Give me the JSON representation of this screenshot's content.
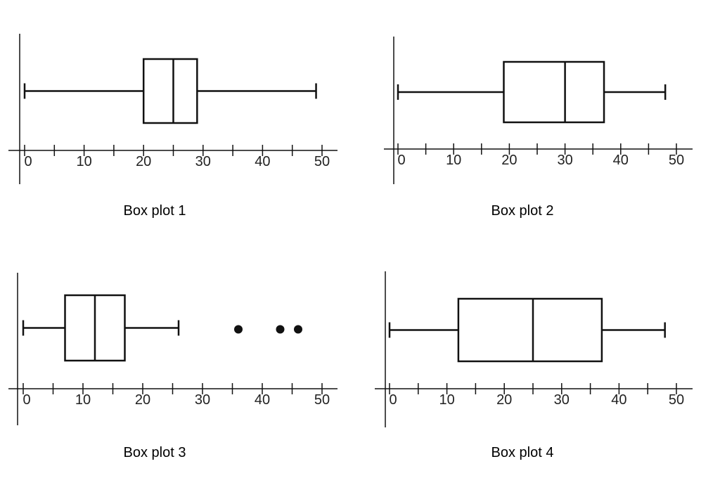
{
  "chart_data": [
    {
      "type": "box",
      "caption": "Box plot 1",
      "xlim": [
        0,
        50
      ],
      "ticks": [
        0,
        10,
        20,
        30,
        40,
        50
      ],
      "minor_ticks": [
        5,
        15,
        25,
        35,
        45
      ],
      "min": 0,
      "q1": 20,
      "median": 25,
      "q3": 29,
      "max": 49,
      "outliers": []
    },
    {
      "type": "box",
      "caption": "Box plot 2",
      "xlim": [
        0,
        50
      ],
      "ticks": [
        0,
        10,
        20,
        30,
        40,
        50
      ],
      "minor_ticks": [
        5,
        15,
        25,
        35,
        45
      ],
      "min": 0,
      "q1": 19,
      "median": 30,
      "q3": 37,
      "max": 48,
      "outliers": []
    },
    {
      "type": "box",
      "caption": "Box plot 3",
      "xlim": [
        0,
        50
      ],
      "ticks": [
        0,
        10,
        20,
        30,
        40,
        50
      ],
      "minor_ticks": [
        5,
        15,
        25,
        35,
        45
      ],
      "min": 0,
      "q1": 7,
      "median": 12,
      "q3": 17,
      "max": 26,
      "outliers": [
        36,
        43,
        46
      ]
    },
    {
      "type": "box",
      "caption": "Box plot 4",
      "xlim": [
        0,
        50
      ],
      "ticks": [
        0,
        10,
        20,
        30,
        40,
        50
      ],
      "minor_ticks": [
        5,
        15,
        25,
        35,
        45
      ],
      "min": 0,
      "q1": 12,
      "median": 25,
      "q3": 37,
      "max": 48,
      "outliers": []
    }
  ]
}
